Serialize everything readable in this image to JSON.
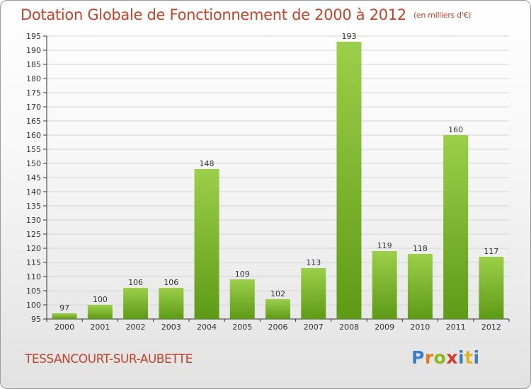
{
  "title": "Dotation Globale de Fonctionnement de 2000 à 2012",
  "subtitle": "(en milliers d'€)",
  "commune": "TESSANCOURT-SUR-AUBETTE",
  "logo": {
    "p": "P",
    "r": "r",
    "o": "o",
    "x": "x",
    "i1": "i",
    "t": "t",
    "i2": "i"
  },
  "colors": {
    "title": "#c0442a",
    "bar_light": "#9ccf4a",
    "bar_dark": "#5e9a16",
    "grid": "#d4d4d4"
  },
  "chart_data": {
    "type": "bar",
    "categories": [
      "2000",
      "2001",
      "2002",
      "2003",
      "2004",
      "2005",
      "2006",
      "2007",
      "2008",
      "2009",
      "2010",
      "2011",
      "2012"
    ],
    "values": [
      97,
      100,
      106,
      106,
      148,
      109,
      102,
      113,
      193,
      119,
      118,
      160,
      117
    ],
    "ylim": [
      95,
      195
    ],
    "ytick_step": 5,
    "grid": true,
    "title": "Dotation Globale de Fonctionnement de 2000 à 2012",
    "xlabel": "",
    "ylabel": ""
  }
}
